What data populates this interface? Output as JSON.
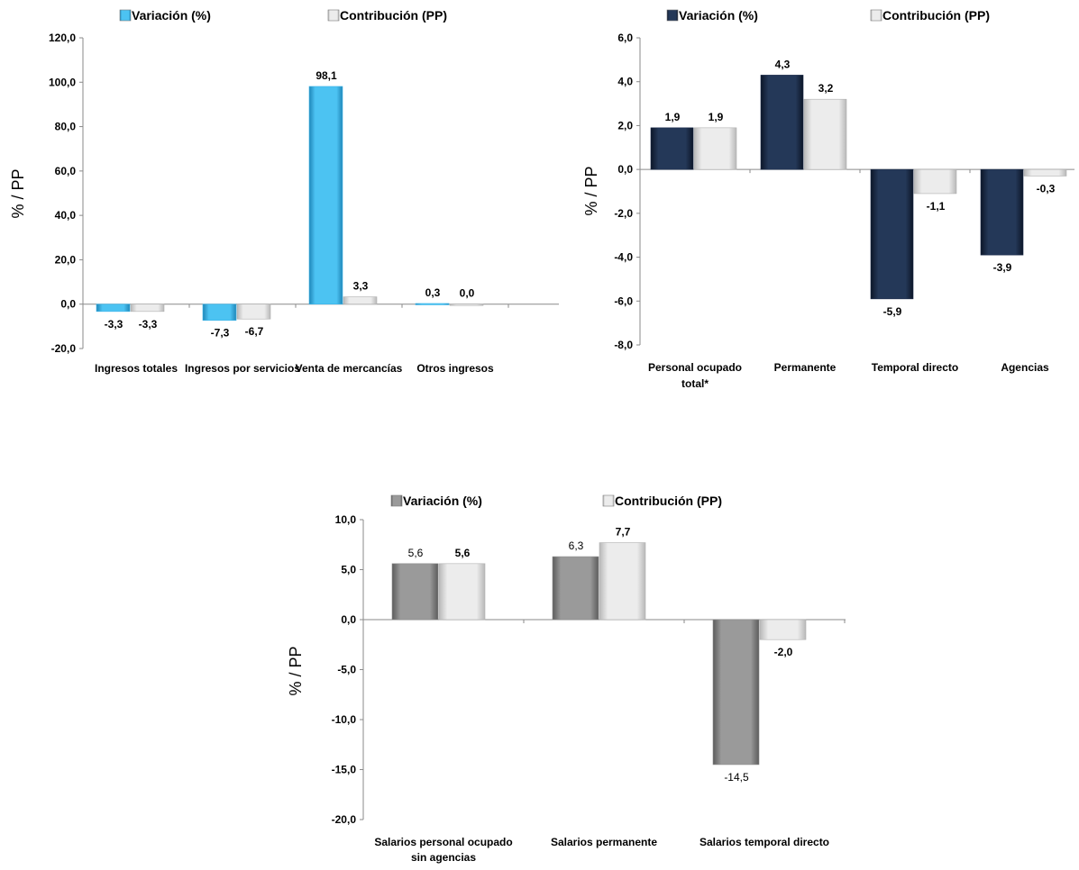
{
  "chart_data": [
    {
      "type": "bar",
      "ylabel": "% / PP",
      "ylim": [
        -20,
        120
      ],
      "yticks": [
        "-20,0",
        "0,0",
        "20,0",
        "40,0",
        "60,0",
        "80,0",
        "100,0",
        "120,0"
      ],
      "categories": [
        "Ingresos totales",
        "Ingresos por servicios",
        "Venta de mercancías",
        "Otros ingresos"
      ],
      "series": [
        {
          "name": "Variación (%)",
          "color": "#3db4e8",
          "values": [
            -3.3,
            -7.3,
            98.1,
            0.3
          ],
          "labels": [
            "-3,3",
            "-7,3",
            "98,1",
            "0,3"
          ]
        },
        {
          "name": "Contribución (PP)",
          "color": "#d9d9d9",
          "values": [
            -3.3,
            -6.7,
            3.3,
            0.0
          ],
          "labels": [
            "-3,3",
            "-6,7",
            "3,3",
            "0,0"
          ]
        }
      ],
      "legend": "top"
    },
    {
      "type": "bar",
      "ylabel": "% / PP",
      "ylim": [
        -8,
        6
      ],
      "yticks": [
        "-8,0",
        "-6,0",
        "-4,0",
        "-2,0",
        "0,0",
        "2,0",
        "4,0",
        "6,0"
      ],
      "categories": [
        "Personal ocupado total*",
        "Permanente",
        "Temporal directo",
        "Agencias"
      ],
      "series": [
        {
          "name": "Variación (%)",
          "color": "#1b2a4a",
          "values": [
            1.9,
            4.3,
            -5.9,
            -3.9
          ],
          "labels": [
            "1,9",
            "4,3",
            "-5,9",
            "-3,9"
          ]
        },
        {
          "name": "Contribución (PP)",
          "color": "#d9d9d9",
          "values": [
            1.9,
            3.2,
            -1.1,
            -0.3
          ],
          "labels": [
            "1,9",
            "3,2",
            "-1,1",
            "-0,3"
          ]
        }
      ],
      "legend": "top"
    },
    {
      "type": "bar",
      "ylabel": "% / PP",
      "ylim": [
        -20,
        10
      ],
      "yticks": [
        "-20,0",
        "-15,0",
        "-10,0",
        "-5,0",
        "0,0",
        "5,0",
        "10,0"
      ],
      "categories": [
        "Salarios personal ocupado sin agencias",
        "Salarios permanente",
        "Salarios temporal directo"
      ],
      "series": [
        {
          "name": "Variación (%)",
          "color": "#8c8c8c",
          "values": [
            5.6,
            6.3,
            -14.5
          ],
          "labels": [
            "5,6",
            "6,3",
            "-14,5"
          ]
        },
        {
          "name": "Contribución (PP)",
          "color": "#d9d9d9",
          "values": [
            5.6,
            7.7,
            -2.0
          ],
          "labels": [
            "5,6",
            "7,7",
            "-2,0"
          ]
        }
      ],
      "legend": "top"
    }
  ]
}
